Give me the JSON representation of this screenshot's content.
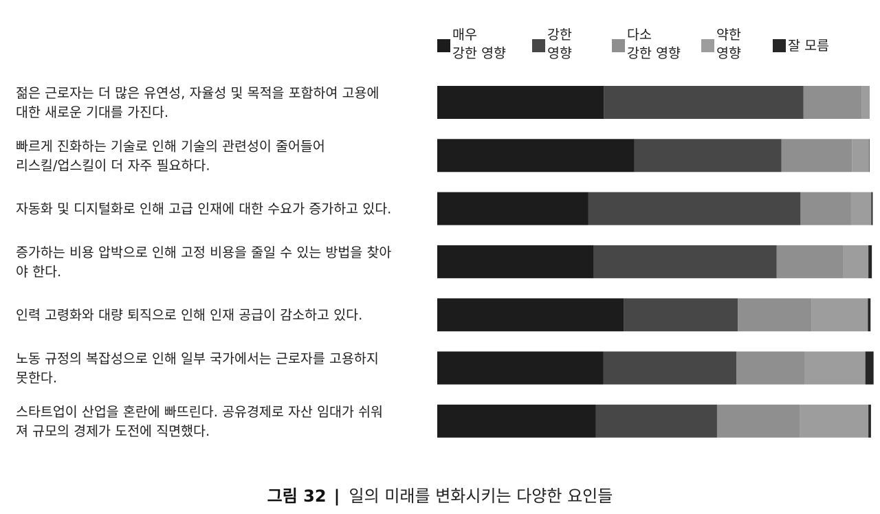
{
  "chart_data": {
    "type": "bar",
    "orientation": "horizontal",
    "stacked": true,
    "normalized": true,
    "categories": [
      [
        "젊은 근로자는 더 많은 유연성, 자율성 및 목적을 포함하여 고용에",
        "대한 새로운 기대를 가진다."
      ],
      [
        "빠르게 진화하는 기술로 인해 기술의 관련성이 줄어들어",
        "리스킬/업스킬이 더 자주 필요하다."
      ],
      [
        "자동화 및 디지털화로 인해 고급 인재에 대한 수요가 증가하고 있다."
      ],
      [
        "증가하는 비용 압박으로 인해 고정 비용을 줄일 수 있는 방법을 찾아",
        "야 한다."
      ],
      [
        "인력 고령화와 대량 퇴직으로 인해 인재 공급이 감소하고 있다."
      ],
      [
        "노동 규정의 복잡성으로 인해 일부 국가에서는 근로자를 고용하지",
        "못한다."
      ],
      [
        "스타트업이 산업을 혼란에 빠뜨린다. 공유경제로 자산 임대가 쉬워",
        "져 규모의 경제가 도전에 직면했다."
      ]
    ],
    "series": [
      {
        "name": [
          "매우",
          "강한 영향"
        ],
        "color": "#1c1c1c",
        "values": [
          38.5,
          45.6,
          34.9,
          36.2,
          43.1,
          38.4,
          36.7
        ]
      },
      {
        "name": [
          "강한",
          "영향"
        ],
        "color": "#474747",
        "values": [
          46.2,
          34.0,
          49.1,
          42.3,
          26.4,
          30.8,
          28.0
        ]
      },
      {
        "name": [
          "다소",
          "강한 영향"
        ],
        "color": "#8f8f8f",
        "values": [
          13.5,
          16.3,
          11.7,
          15.4,
          17.0,
          15.7,
          19.2
        ]
      },
      {
        "name": [
          "약한",
          "영향"
        ],
        "color": "#9d9d9d",
        "values": [
          1.8,
          4.0,
          4.7,
          5.8,
          13.1,
          14.1,
          15.8
        ]
      },
      {
        "name": [
          "잘 모름"
        ],
        "color": "#262626",
        "values": [
          0.0,
          0.1,
          0.3,
          0.8,
          0.6,
          1.9,
          0.6
        ]
      }
    ],
    "xlim": [
      0,
      100
    ],
    "legend_position": "top",
    "grid": false,
    "title": "",
    "xlabel": "",
    "ylabel": ""
  },
  "caption": {
    "number": "그림 32",
    "separator": "|",
    "text": "일의 미래를 변화시키는 다양한 요인들"
  }
}
